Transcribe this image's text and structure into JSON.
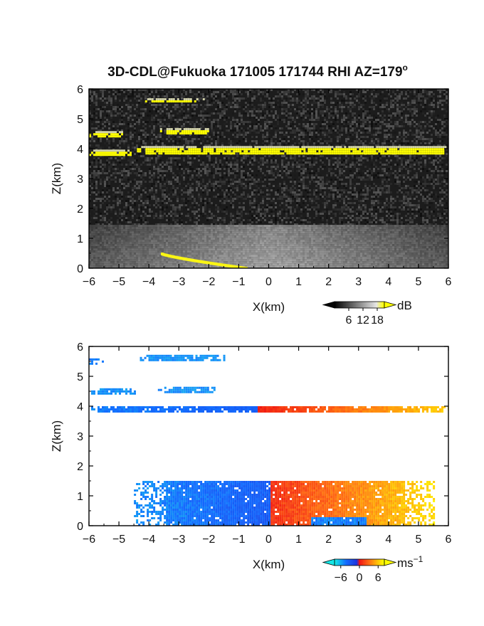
{
  "title": "3D-CDL@Fukuoka 171005 171744 RHI AZ=179",
  "title_superscript": "o",
  "chart_data": [
    {
      "type": "heatmap",
      "panel": "top",
      "quantity": "dB",
      "xlabel": "X(km)",
      "ylabel": "Z(km)",
      "xlim": [
        -6,
        6
      ],
      "ylim": [
        0,
        6
      ],
      "xticks": [
        "−6",
        "−5",
        "−4",
        "−3",
        "−2",
        "−1",
        "0",
        "1",
        "2",
        "3",
        "4",
        "5",
        "6"
      ],
      "yticks": [
        "0",
        "1",
        "2",
        "3",
        "4",
        "5",
        "6"
      ],
      "colorbar": {
        "unit": "dB",
        "ticks": [
          "6",
          "12",
          "18"
        ],
        "range": [
          0,
          21
        ]
      },
      "features": [
        {
          "name": "main layer",
          "x_start": -4.4,
          "x_end": 6.0,
          "z_center": 3.95,
          "thickness": 0.28,
          "intensity": "high"
        },
        {
          "name": "left layer",
          "x_start": -6.0,
          "x_end": -4.6,
          "z_center": 3.87,
          "thickness": 0.2,
          "intensity": "high"
        },
        {
          "name": "middle layer",
          "x_start": -6.0,
          "x_end": -4.9,
          "z_center": 4.5,
          "thickness": 0.18,
          "intensity": "high"
        },
        {
          "name": "upper middle layer",
          "x_start": -3.7,
          "x_end": -2.0,
          "z_center": 4.6,
          "thickness": 0.18,
          "intensity": "high"
        },
        {
          "name": "top layer",
          "x_start": -4.2,
          "x_end": -2.2,
          "z_center": 5.63,
          "thickness": 0.12,
          "intensity": "high"
        },
        {
          "name": "boundary layer",
          "x_start": -6.0,
          "x_end": 6.0,
          "z_top": 1.45,
          "intensity": "medium"
        },
        {
          "name": "ground echo",
          "x_start": -3.6,
          "x_end": -0.8,
          "z_from": 0.5,
          "z_to": 0.02,
          "intensity": "high"
        }
      ]
    },
    {
      "type": "heatmap",
      "panel": "bottom",
      "quantity": "Doppler velocity",
      "xlabel": "X(km)",
      "ylabel": "Z(km)",
      "xlim": [
        -6,
        6
      ],
      "ylim": [
        0,
        6
      ],
      "xticks": [
        "−6",
        "−5",
        "−4",
        "−3",
        "−2",
        "−1",
        "0",
        "1",
        "2",
        "3",
        "4",
        "5",
        "6"
      ],
      "yticks": [
        "0",
        "1",
        "2",
        "3",
        "4",
        "5",
        "6"
      ],
      "colorbar": {
        "unit": "ms",
        "unit_superscript": "−1",
        "ticks": [
          "−6",
          "0",
          "6"
        ],
        "range": [
          -8,
          8
        ]
      },
      "features": [
        {
          "name": "main layer",
          "x_start": -6.0,
          "x_end": 6.0,
          "z_center": 3.9,
          "velocity_left": -5.0,
          "velocity_right": 6.5
        },
        {
          "name": "middle layer",
          "x_start": -6.0,
          "x_end": -4.5,
          "z_center": 4.5,
          "velocity": -5.5
        },
        {
          "name": "upper middle layer",
          "x_start": -3.7,
          "x_end": -1.8,
          "z_center": 4.55,
          "velocity": -5.5
        },
        {
          "name": "top layer",
          "x_start": -4.3,
          "x_end": -1.5,
          "z_center": 5.62,
          "velocity": -5.5
        },
        {
          "name": "corner patch",
          "x_start": -6.0,
          "x_end": -5.5,
          "z_center": 5.5,
          "velocity": -5.0
        },
        {
          "name": "boundary layer",
          "x_start": -4.5,
          "x_end": 5.5,
          "z_top": 1.5,
          "velocity_left": -6.0,
          "velocity_right": 6.0
        }
      ]
    }
  ]
}
